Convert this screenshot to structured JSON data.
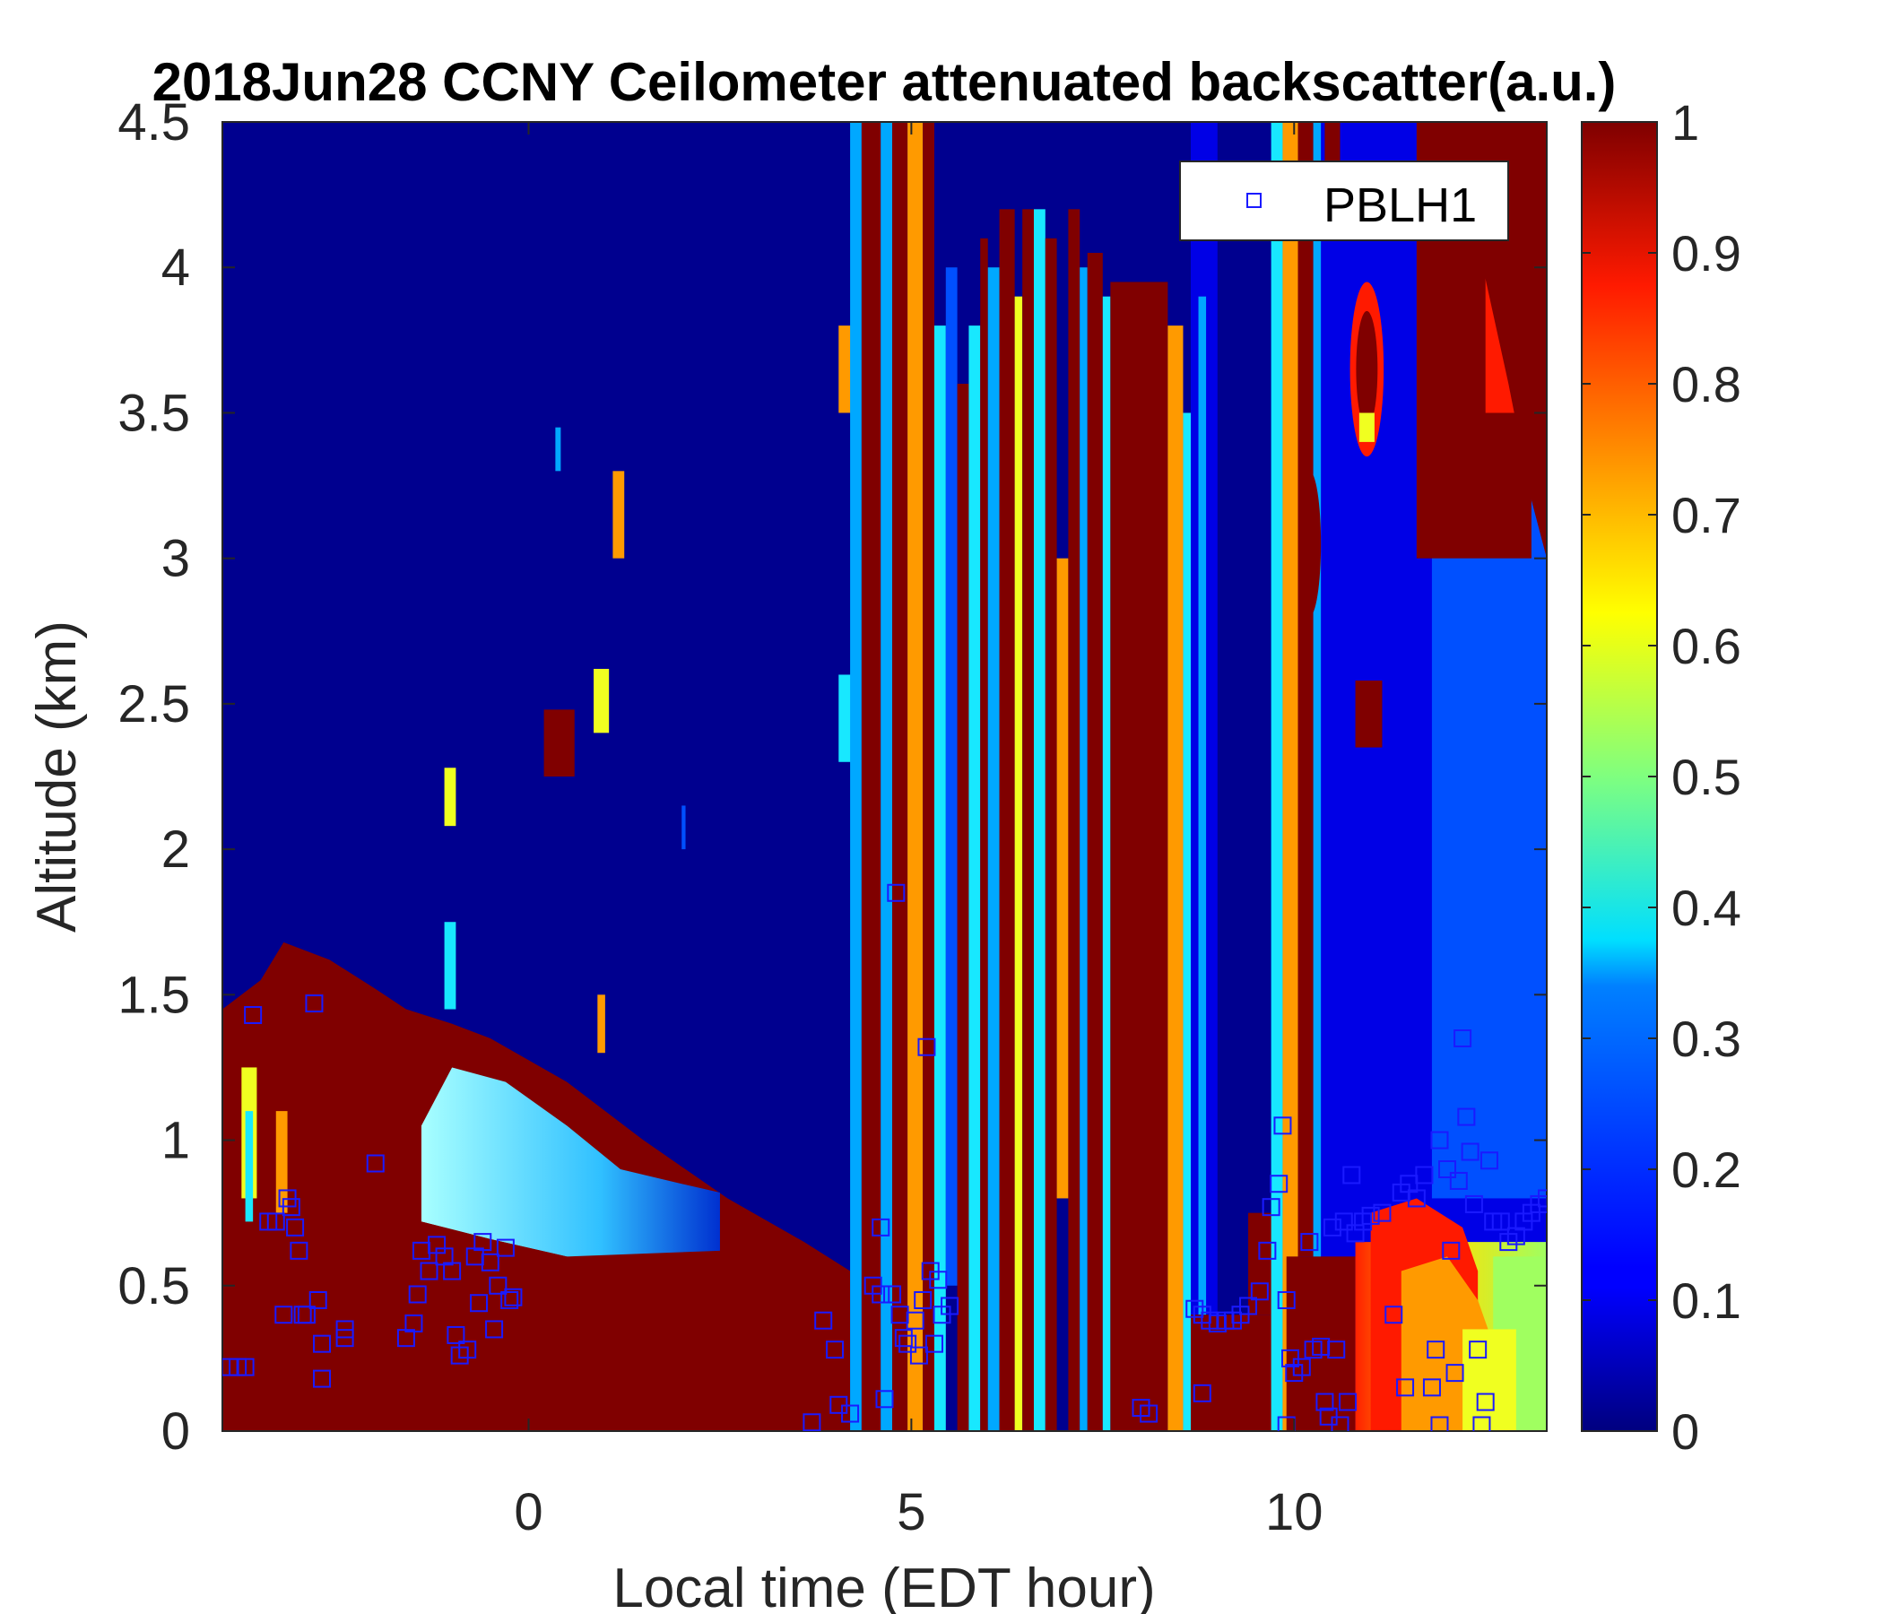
{
  "chart_data": {
    "type": "heatmap",
    "title": "2018Jun28 CCNY Ceilometer attenuated backscatter(a.u.)",
    "xlabel": "Local time (EDT hour)",
    "ylabel": "Altitude (km)",
    "xlim": [
      -4,
      13.3
    ],
    "ylim": [
      0,
      4.5
    ],
    "x_ticks": [
      0,
      5,
      10
    ],
    "x_tick_labels": [
      "0",
      "5",
      "10"
    ],
    "y_ticks": [
      0,
      0.5,
      1,
      1.5,
      2,
      2.5,
      3,
      3.5,
      4,
      4.5
    ],
    "y_tick_labels": [
      "0",
      "0.5",
      "1",
      "1.5",
      "2",
      "2.5",
      "3",
      "3.5",
      "4",
      "4.5"
    ],
    "colorbar": {
      "range": [
        0,
        1
      ],
      "ticks": [
        0,
        0.1,
        0.2,
        0.3,
        0.4,
        0.5,
        0.6,
        0.7,
        0.8,
        0.9,
        1
      ],
      "tick_labels": [
        "0",
        "0.1",
        "0.2",
        "0.3",
        "0.4",
        "0.5",
        "0.6",
        "0.7",
        "0.8",
        "0.9",
        "1"
      ],
      "colormap": "jet"
    },
    "legend": {
      "placement": "top-right",
      "entries": [
        {
          "name": "PBLH1",
          "marker": "square",
          "color": "#1a1aff"
        }
      ]
    },
    "series": [
      {
        "name": "PBLH1",
        "type": "scatter",
        "marker": "square",
        "color": "#1a1aff",
        "points": [
          [
            -3.9,
            0.22
          ],
          [
            -3.8,
            0.22
          ],
          [
            -3.7,
            0.22
          ],
          [
            -3.6,
            1.43
          ],
          [
            -3.4,
            0.72
          ],
          [
            -3.3,
            0.72
          ],
          [
            -3.2,
            0.4
          ],
          [
            -3.15,
            0.8
          ],
          [
            -3.1,
            0.77
          ],
          [
            -3.05,
            0.7
          ],
          [
            -3.0,
            0.62
          ],
          [
            -2.95,
            0.4
          ],
          [
            -2.9,
            0.4
          ],
          [
            -2.8,
            1.47
          ],
          [
            -2.75,
            0.45
          ],
          [
            -2.7,
            0.3
          ],
          [
            -2.7,
            0.18
          ],
          [
            -2.4,
            0.35
          ],
          [
            -2.4,
            0.32
          ],
          [
            -2.0,
            0.92
          ],
          [
            -1.6,
            0.32
          ],
          [
            -1.5,
            0.37
          ],
          [
            -1.45,
            0.47
          ],
          [
            -1.4,
            0.62
          ],
          [
            -1.3,
            0.55
          ],
          [
            -1.3,
            0.55
          ],
          [
            -1.2,
            0.64
          ],
          [
            -1.1,
            0.6
          ],
          [
            -1.0,
            0.55
          ],
          [
            -0.95,
            0.33
          ],
          [
            -0.9,
            0.26
          ],
          [
            -0.8,
            0.28
          ],
          [
            -0.7,
            0.6
          ],
          [
            -0.65,
            0.44
          ],
          [
            -0.6,
            0.65
          ],
          [
            -0.5,
            0.58
          ],
          [
            -0.45,
            0.35
          ],
          [
            -0.4,
            0.5
          ],
          [
            -0.3,
            0.63
          ],
          [
            -0.25,
            0.45
          ],
          [
            -0.2,
            0.46
          ],
          [
            3.7,
            0.03
          ],
          [
            3.85,
            0.38
          ],
          [
            4.0,
            0.28
          ],
          [
            4.05,
            0.09
          ],
          [
            4.2,
            0.06
          ],
          [
            4.5,
            0.5
          ],
          [
            4.6,
            0.47
          ],
          [
            4.6,
            0.7
          ],
          [
            4.65,
            0.11
          ],
          [
            4.75,
            0.47
          ],
          [
            4.8,
            1.85
          ],
          [
            4.85,
            0.4
          ],
          [
            4.9,
            0.32
          ],
          [
            4.95,
            0.3
          ],
          [
            5.05,
            0.38
          ],
          [
            5.1,
            0.26
          ],
          [
            5.15,
            0.45
          ],
          [
            5.2,
            1.32
          ],
          [
            5.25,
            0.55
          ],
          [
            5.3,
            0.3
          ],
          [
            5.35,
            0.52
          ],
          [
            5.4,
            0.4
          ],
          [
            5.5,
            0.43
          ],
          [
            8.0,
            0.08
          ],
          [
            8.1,
            0.06
          ],
          [
            8.8,
            0.13
          ],
          [
            8.7,
            0.42
          ],
          [
            8.8,
            0.4
          ],
          [
            8.9,
            0.38
          ],
          [
            9.0,
            0.37
          ],
          [
            9.1,
            0.38
          ],
          [
            9.2,
            0.38
          ],
          [
            9.3,
            0.4
          ],
          [
            9.4,
            0.43
          ],
          [
            9.55,
            0.48
          ],
          [
            9.65,
            0.62
          ],
          [
            9.7,
            0.77
          ],
          [
            9.8,
            0.85
          ],
          [
            9.85,
            1.05
          ],
          [
            9.9,
            0.45
          ],
          [
            9.9,
            0.02
          ],
          [
            9.95,
            0.25
          ],
          [
            10.0,
            0.2
          ],
          [
            10.1,
            0.22
          ],
          [
            10.2,
            0.65
          ],
          [
            10.25,
            0.28
          ],
          [
            10.35,
            0.29
          ],
          [
            10.4,
            0.1
          ],
          [
            10.45,
            0.05
          ],
          [
            10.5,
            0.7
          ],
          [
            10.55,
            0.28
          ],
          [
            10.6,
            0.02
          ],
          [
            10.65,
            0.72
          ],
          [
            10.7,
            0.1
          ],
          [
            10.75,
            0.88
          ],
          [
            10.8,
            0.68
          ],
          [
            10.9,
            0.72
          ],
          [
            11.0,
            0.74
          ],
          [
            11.15,
            0.75
          ],
          [
            11.3,
            0.4
          ],
          [
            11.4,
            0.82
          ],
          [
            11.45,
            0.15
          ],
          [
            11.5,
            0.85
          ],
          [
            11.6,
            0.8
          ],
          [
            11.7,
            0.88
          ],
          [
            11.8,
            0.15
          ],
          [
            11.85,
            0.28
          ],
          [
            11.9,
            1.0
          ],
          [
            11.9,
            0.02
          ],
          [
            12.0,
            0.9
          ],
          [
            12.05,
            0.62
          ],
          [
            12.1,
            0.2
          ],
          [
            12.15,
            0.86
          ],
          [
            12.2,
            1.35
          ],
          [
            12.25,
            1.08
          ],
          [
            12.3,
            0.96
          ],
          [
            12.35,
            0.78
          ],
          [
            12.4,
            0.28
          ],
          [
            12.45,
            0.02
          ],
          [
            12.5,
            0.1
          ],
          [
            12.55,
            0.93
          ],
          [
            12.6,
            0.72
          ],
          [
            12.7,
            0.72
          ],
          [
            12.8,
            0.65
          ],
          [
            12.9,
            0.67
          ],
          [
            13.0,
            0.72
          ],
          [
            13.1,
            0.75
          ],
          [
            13.2,
            0.78
          ],
          [
            13.3,
            0.8
          ]
        ]
      }
    ]
  }
}
